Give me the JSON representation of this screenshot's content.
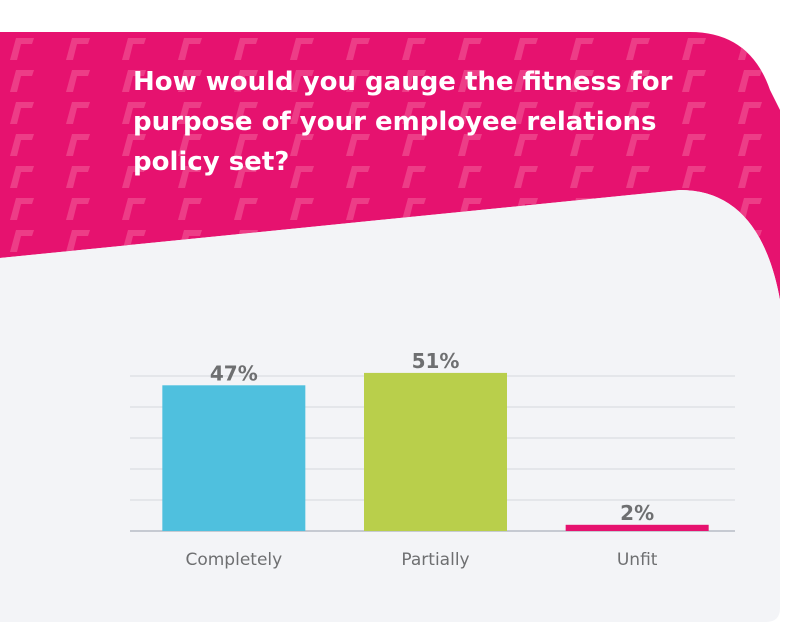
{
  "colors": {
    "header_pink": "#e6126f",
    "panel_bg": "#f3f4f7",
    "grid": "#d6d8de",
    "text": "#6e6f71"
  },
  "chart_data": {
    "type": "bar",
    "title": "How would you gauge the fitness for purpose of your employee relations policy set?",
    "categories": [
      "Completely",
      "Partially",
      "Unfit"
    ],
    "values": [
      47,
      51,
      2
    ],
    "data_labels": [
      "47%",
      "51%",
      "2%"
    ],
    "colors": [
      "#4fc0de",
      "#b9cf4b",
      "#e6126f"
    ],
    "ylim": [
      0,
      50
    ],
    "grid": true,
    "legend": "none",
    "xlabel": "",
    "ylabel": ""
  }
}
